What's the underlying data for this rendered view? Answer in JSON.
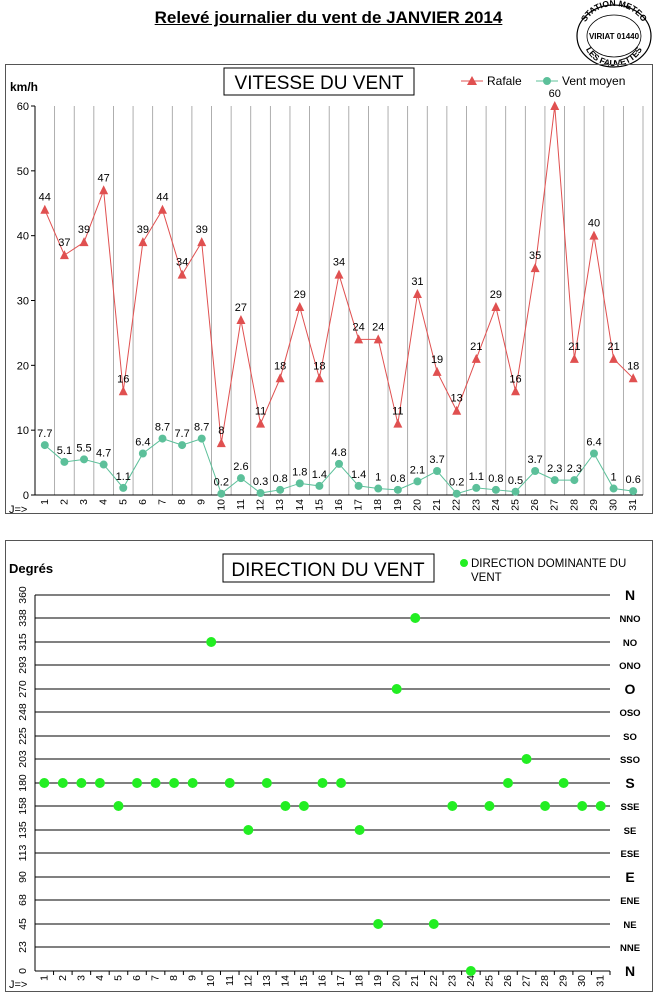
{
  "page_title": "Relevé journalier du vent de JANVIER 2014",
  "stamp": {
    "top": "STATION METEO",
    "middle": "VIRIAT 01440",
    "bottom": "LES FAUVETTES"
  },
  "colors": {
    "rafale": "#e05050",
    "vent_moyen": "#5cc09a",
    "direction": "#22ee22",
    "grid": "#000000"
  },
  "chart_data": [
    {
      "type": "line",
      "title": "VITESSE DU VENT",
      "ylabel": "km/h",
      "xlabel": "J=>",
      "ylim": [
        0,
        60
      ],
      "yticks": [
        0,
        10,
        20,
        30,
        40,
        50,
        60
      ],
      "grid": "vertical",
      "legend_position": "top-right",
      "categories": [
        "1",
        "2",
        "3",
        "4",
        "5",
        "6",
        "7",
        "8",
        "9",
        "10",
        "11",
        "12",
        "13",
        "14",
        "15",
        "16",
        "17",
        "18",
        "19",
        "20",
        "21",
        "22",
        "23",
        "24",
        "25",
        "26",
        "27",
        "28",
        "29",
        "30",
        "31"
      ],
      "series": [
        {
          "name": "Rafale",
          "marker": "triangle",
          "values": [
            44,
            37,
            39,
            47,
            16,
            39,
            44,
            34,
            39,
            8,
            27,
            11,
            18,
            29,
            18,
            34,
            24,
            24,
            11,
            31,
            19,
            13,
            21,
            29,
            16,
            35,
            60,
            21,
            40,
            21,
            18
          ]
        },
        {
          "name": "Vent moyen",
          "marker": "circle",
          "values": [
            7.7,
            5.1,
            5.5,
            4.7,
            1.1,
            6.4,
            8.7,
            7.7,
            8.7,
            0.2,
            2.6,
            0.3,
            0.8,
            1.8,
            1.4,
            4.8,
            1.4,
            1,
            0.8,
            2.1,
            3.7,
            0.2,
            1.1,
            0.8,
            0.5,
            3.7,
            2.3,
            2.3,
            6.4,
            1,
            0.6
          ]
        }
      ]
    },
    {
      "type": "scatter",
      "title": "DIRECTION DU VENT",
      "ylabel": "Degrés",
      "xlabel": "J=>",
      "ylim": [
        0,
        360
      ],
      "yticks": [
        0,
        23,
        45,
        68,
        90,
        113,
        135,
        158,
        180,
        203,
        225,
        248,
        270,
        293,
        315,
        338,
        360
      ],
      "right_labels": [
        "N",
        "NNE",
        "NE",
        "ENE",
        "E",
        "ESE",
        "SE",
        "SSE",
        "S",
        "SSO",
        "SO",
        "OSO",
        "O",
        "ONO",
        "NO",
        "NNO",
        "N"
      ],
      "grid": "horizontal",
      "legend_position": "top-right",
      "categories": [
        "1",
        "2",
        "3",
        "4",
        "5",
        "6",
        "7",
        "8",
        "9",
        "10",
        "11",
        "12",
        "13",
        "14",
        "15",
        "16",
        "17",
        "18",
        "19",
        "20",
        "21",
        "22",
        "23",
        "24",
        "25",
        "26",
        "27",
        "28",
        "29",
        "30",
        "31"
      ],
      "series": [
        {
          "name": "DIRECTION DOMINANTE DU VENT",
          "marker": "circle",
          "values": [
            180,
            180,
            180,
            180,
            158,
            180,
            180,
            180,
            180,
            315,
            180,
            135,
            180,
            158,
            158,
            180,
            180,
            135,
            45,
            270,
            338,
            45,
            158,
            0,
            158,
            180,
            203,
            158,
            180,
            158,
            158
          ]
        }
      ]
    }
  ]
}
